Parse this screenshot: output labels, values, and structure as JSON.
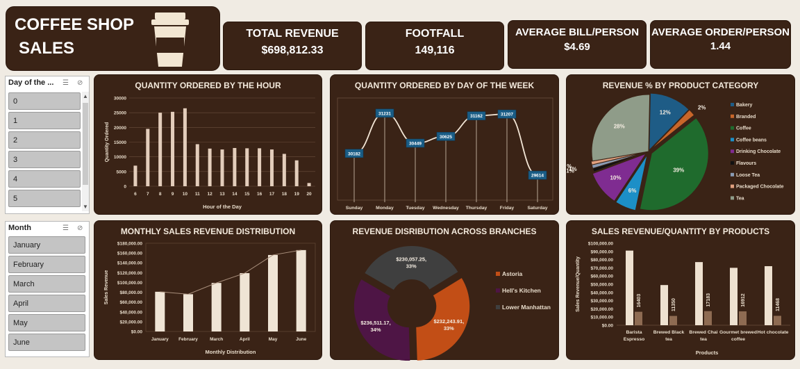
{
  "title": {
    "line1": "COFFEE SHOP",
    "line2": "SALES"
  },
  "kpis": {
    "revenue": {
      "label": "TOTAL REVENUE",
      "value": "$698,812.33"
    },
    "footfall": {
      "label": "FOOTFALL",
      "value": "149,116"
    },
    "bill": {
      "label": "AVERAGE BILL/PERSON",
      "value": "$4.69"
    },
    "order": {
      "label": "AVERAGE ORDER/PERSON",
      "value": "1.44"
    }
  },
  "slicer_day": {
    "title": "Day of the ...",
    "items": [
      "0",
      "1",
      "2",
      "3",
      "4",
      "5"
    ]
  },
  "slicer_month": {
    "title": "Month",
    "items": [
      "January",
      "February",
      "March",
      "April",
      "May",
      "June"
    ]
  },
  "colors": {
    "panel": "#3a2316",
    "bar": "#eadcc9",
    "axis": "#c9b8a5"
  },
  "chart_data": [
    {
      "type": "bar",
      "title": "QUANTITY ORDERED BY THE HOUR",
      "xlabel": "Hour of the Day",
      "ylabel": "Quantity Ordered",
      "categories": [
        "6",
        "7",
        "8",
        "9",
        "10",
        "11",
        "12",
        "13",
        "14",
        "15",
        "16",
        "17",
        "18",
        "19",
        "20"
      ],
      "values": [
        7000,
        19500,
        25000,
        25300,
        26500,
        14300,
        12800,
        12500,
        13000,
        12900,
        12900,
        12500,
        11000,
        8800,
        1100
      ],
      "ylim": [
        0,
        30000
      ],
      "yticks": [
        "0",
        "5000",
        "10000",
        "15000",
        "20000",
        "25000",
        "30000"
      ],
      "grid": true
    },
    {
      "type": "line",
      "title": "QUANTITY ORDERED BY DAY OF THE WEEK",
      "categories": [
        "Sunday",
        "Monday",
        "Tuesday",
        "Wednesday",
        "Thursday",
        "Friday",
        "Saturday"
      ],
      "values": [
        30182,
        31231,
        30449,
        30625,
        31162,
        31207,
        29614
      ],
      "labels": [
        "30182",
        "31231",
        "30449",
        "30625",
        "31162",
        "31207",
        "29614"
      ],
      "ylim": [
        29000,
        31500
      ]
    },
    {
      "type": "pie",
      "title": "REVENUE % BY PRODUCT CATEGORY",
      "categories": [
        "Bakery",
        "Branded",
        "Coffee",
        "Coffee beans",
        "Drinking Chocolate",
        "Flavours",
        "Loose Tea",
        "Packaged Chocolate",
        "Tea"
      ],
      "values": [
        12,
        2,
        39,
        6,
        10,
        1,
        1,
        1,
        28
      ],
      "labels": [
        "12%",
        "2%",
        "39%",
        "6%",
        "10%",
        "1%",
        "1%",
        "1%",
        "28%"
      ],
      "colors": [
        "#1e5c86",
        "#c8662a",
        "#1f6b2d",
        "#1c8fc7",
        "#7f2c91",
        "#111111",
        "#8a9bb3",
        "#e0a07f",
        "#8f9c89"
      ],
      "legend": "right"
    },
    {
      "type": "bar",
      "title": "MONTHLY SALES REVENUE DISTRIBUTION",
      "xlabel": "Monthly Distribution",
      "ylabel": "Sales Revenue",
      "categories": [
        "January",
        "February",
        "March",
        "April",
        "May",
        "June"
      ],
      "values": [
        81000,
        76000,
        99000,
        119000,
        156000,
        166000
      ],
      "ylim": [
        0,
        180000
      ],
      "yticks": [
        "$0.00",
        "$20,000.00",
        "$40,000.00",
        "$60,000.00",
        "$80,000.00",
        "$100,000.00",
        "$120,000.00",
        "$140,000.00",
        "$160,000.00",
        "$180,000.00"
      ],
      "trendline": true
    },
    {
      "type": "pie",
      "title": "REVENUE DISRIBUTION ACROSS BRANCHES",
      "categories": [
        "Astoria",
        "Hell's Kitchen",
        "Lower Manhattan"
      ],
      "values": [
        232243.91,
        236511.17,
        230057.25
      ],
      "labels": [
        "$232,243.91,\n33%",
        "$236,511.17,\n34%",
        "$230,057.25,\n33%"
      ],
      "colors": [
        "#c24e16",
        "#4e1545",
        "#3f3f3f"
      ],
      "legend": "right"
    },
    {
      "type": "bar",
      "title": "SALES REVENUE/QUANTITY BY PRODUCTS",
      "xlabel": "Products",
      "ylabel": "Sales Revenue/Quantity",
      "categories": [
        "Barista Espresso",
        "Brewed Black tea",
        "Brewed Chai tea",
        "Gourmet brewed coffee",
        "Hot chocolate"
      ],
      "series": [
        {
          "values": [
            91000,
            49000,
            77000,
            70000,
            72000
          ]
        },
        {
          "values": [
            16403,
            11350,
            17183,
            16912,
            11468
          ],
          "labels": [
            "16403",
            "11350",
            "17183",
            "16912",
            "11468"
          ]
        }
      ],
      "ylim": [
        0,
        100000
      ],
      "yticks": [
        "$0.00",
        "$10,000.00",
        "$20,000.00",
        "$30,000.00",
        "$40,000.00",
        "$50,000.00",
        "$60,000.00",
        "$70,000.00",
        "$80,000.00",
        "$90,000.00",
        "$100,000.00"
      ]
    }
  ]
}
